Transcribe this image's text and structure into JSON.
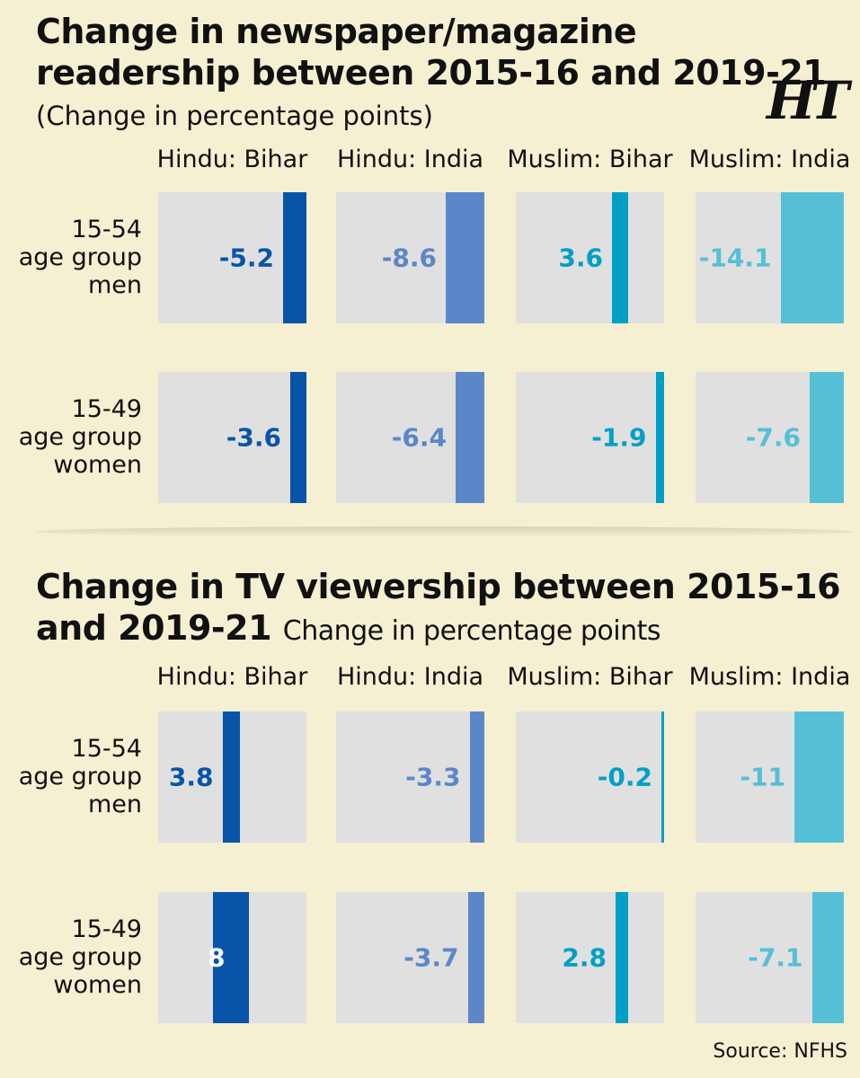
{
  "header": {
    "title1": "Change in newspaper/magazine readership between 2015-16 and 2019-21",
    "subtitle1": "(Change in percentage points)",
    "title2": "Change in TV viewership between 2015-16 and 2019-21",
    "subtitle2": "Change in percentage points",
    "logo": "HT",
    "source": "Source: NFHS"
  },
  "groups": [
    "Hindu: Bihar",
    "Hindu: India",
    "Muslim: Bihar",
    "Muslim: India"
  ],
  "rows": [
    [
      "15-54",
      "age group",
      "men"
    ],
    [
      "15-49",
      "age group",
      "women"
    ]
  ],
  "colors": [
    "#0854a8",
    "#5b87c9",
    "#00a0c6",
    "#55bfd7"
  ],
  "chart_data": [
    {
      "type": "bar",
      "title": "Change in newspaper/magazine readership between 2015-16 and 2019-21",
      "subtitle": "(Change in percentage points)",
      "categories": [
        "Hindu: Bihar",
        "Hindu: India",
        "Muslim: Bihar",
        "Muslim: India"
      ],
      "series": [
        {
          "name": "15-54 age group men",
          "values": [
            -5.2,
            -8.6,
            3.6,
            -14.1
          ]
        },
        {
          "name": "15-49 age group women",
          "values": [
            -3.6,
            -6.4,
            -1.9,
            -7.6
          ]
        }
      ],
      "labels": [
        [
          "-5.2",
          "-8.6",
          "3.6",
          "-14.1"
        ],
        [
          "-3.6",
          "-6.4",
          "-1.9",
          "-7.6"
        ]
      ]
    },
    {
      "type": "bar",
      "title": "Change in TV viewership between 2015-16 and 2019-21",
      "subtitle": "Change in percentage points",
      "categories": [
        "Hindu: Bihar",
        "Hindu: India",
        "Muslim: Bihar",
        "Muslim: India"
      ],
      "series": [
        {
          "name": "15-54 age group men",
          "values": [
            3.8,
            -3.3,
            -0.2,
            -11
          ]
        },
        {
          "name": "15-49 age group women",
          "values": [
            8,
            -3.7,
            2.8,
            -7.1
          ]
        }
      ],
      "labels": [
        [
          "3.8",
          "-3.3",
          "-0.2",
          "-11"
        ],
        [
          "8",
          "-3.7",
          "2.8",
          "-7.1"
        ]
      ]
    }
  ]
}
